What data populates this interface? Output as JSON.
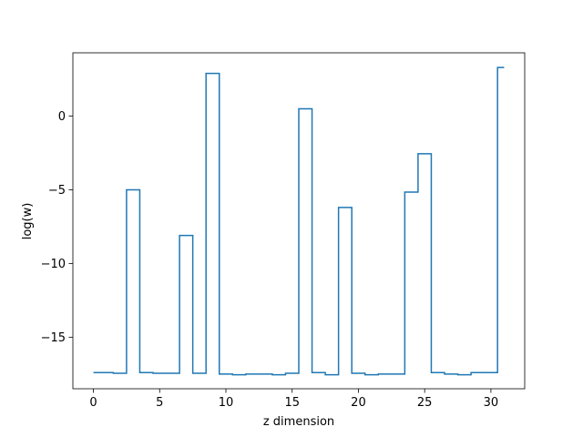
{
  "chart_data": {
    "type": "line",
    "drawstyle": "steps-mid",
    "title": "",
    "xlabel": "z dimension",
    "ylabel": "log(w)",
    "xlim": [
      -1.55,
      32.55
    ],
    "ylim": [
      -18.5,
      4.3
    ],
    "xticks": [
      0,
      5,
      10,
      15,
      20,
      25,
      30
    ],
    "xtick_labels": [
      "0",
      "5",
      "10",
      "15",
      "20",
      "25",
      "30"
    ],
    "yticks": [
      0,
      -5,
      -10,
      -15
    ],
    "ytick_labels": [
      "0",
      "−5",
      "−10",
      "−15"
    ],
    "grid": false,
    "legend": "none",
    "series": [
      {
        "color": "#1f77b4",
        "x": [
          0,
          1,
          2,
          3,
          4,
          5,
          6,
          7,
          8,
          9,
          10,
          11,
          12,
          13,
          14,
          15,
          16,
          17,
          18,
          19,
          20,
          21,
          22,
          23,
          24,
          25,
          26,
          27,
          28,
          29,
          30,
          31
        ],
        "y": [
          -17.4,
          -17.4,
          -17.45,
          -5.0,
          -17.4,
          -17.45,
          -17.45,
          -8.1,
          -17.45,
          2.9,
          -17.5,
          -17.55,
          -17.5,
          -17.5,
          -17.55,
          -17.45,
          0.5,
          -17.4,
          -17.55,
          -6.2,
          -17.45,
          -17.55,
          -17.5,
          -17.5,
          -5.15,
          -2.55,
          -17.4,
          -17.5,
          -17.55,
          -17.4,
          -17.4,
          3.3
        ]
      }
    ]
  }
}
